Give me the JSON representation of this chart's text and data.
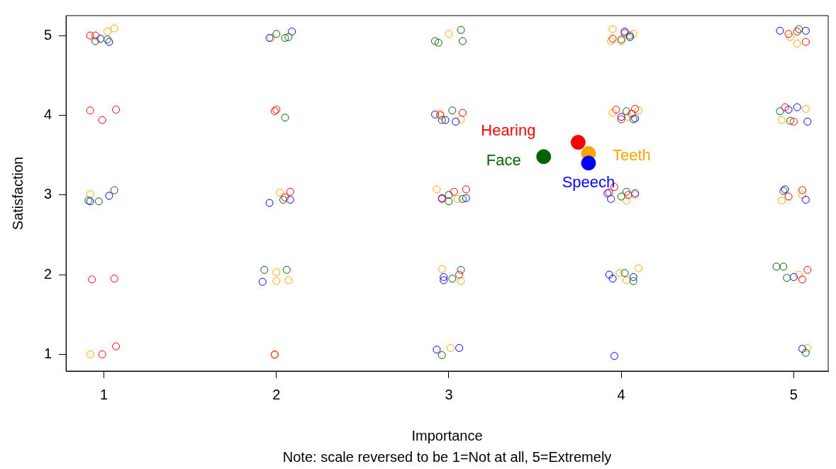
{
  "chart_data": {
    "type": "scatter",
    "xlabel": "Importance",
    "ylabel": "Satisfaction",
    "annotations": [
      "Note: scale reversed to be 1=Not at all, 5=Extremely"
    ],
    "xlim": [
      0.78,
      5.2
    ],
    "ylim": [
      0.79,
      5.25
    ],
    "xticks": [
      1,
      2,
      3,
      4,
      5
    ],
    "yticks": [
      1,
      2,
      3,
      4,
      5
    ],
    "grid": false,
    "legend": false,
    "marker": "circle",
    "series": [
      {
        "color": "#ff0000",
        "x": [
          0.92,
          0.95,
          0.92,
          0.99,
          1.07,
          0.93,
          1.06,
          0.99,
          1.07,
          2.0,
          1.99,
          2.08,
          2.05,
          3.08,
          2.95,
          3.1,
          2.96,
          3.03,
          3.06,
          3.97,
          4.06,
          4.08,
          4.0,
          3.96,
          4.04,
          4.02,
          3.95,
          4.97,
          5.07,
          5.02,
          4.95,
          5.0,
          5.05,
          4.97,
          5.08,
          5.05,
          1.99,
          3.93
        ],
        "values": [
          5.0,
          5.0,
          4.06,
          3.94,
          4.07,
          1.94,
          1.95,
          1.0,
          1.1,
          4.07,
          1.0,
          3.04,
          2.97,
          4.03,
          4.0,
          3.07,
          2.95,
          3.04,
          2.0,
          4.07,
          4.02,
          4.08,
          3.95,
          3.1,
          3.0,
          5.03,
          4.96,
          5.02,
          4.92,
          5.05,
          4.1,
          3.92,
          3.06,
          2.98,
          2.06,
          1.94,
          4.05,
          3.03
        ]
      },
      {
        "color": "#006400",
        "x": [
          0.95,
          1.02,
          0.97,
          0.91,
          1.06,
          2.0,
          2.05,
          2.07,
          2.05,
          2.04,
          1.93,
          2.06,
          2.94,
          2.92,
          3.07,
          3.08,
          3.02,
          2.96,
          3.0,
          3.08,
          3.07,
          3.02,
          2.96,
          4.0,
          4.05,
          4.07,
          4.03,
          4.03,
          4.02,
          4.07,
          5.03,
          4.92,
          4.98,
          4.94,
          4.9,
          4.94,
          4.96,
          5.07,
          4.0,
          3.0
        ],
        "values": [
          4.93,
          4.95,
          2.92,
          2.93,
          3.06,
          5.02,
          4.97,
          4.98,
          3.97,
          2.94,
          2.06,
          2.06,
          4.91,
          4.93,
          5.07,
          4.93,
          4.06,
          3.94,
          3.0,
          2.95,
          2.06,
          1.95,
          0.99,
          4.95,
          5.0,
          3.95,
          4.05,
          3.04,
          2.02,
          1.92,
          5.08,
          4.05,
          3.93,
          3.05,
          2.1,
          2.1,
          1.96,
          1.02,
          2.98,
          2.92
        ]
      },
      {
        "color": "#0000ff",
        "x": [
          1.03,
          0.98,
          0.92,
          1.03,
          1.96,
          2.09,
          1.96,
          2.08,
          1.92,
          2.98,
          3.04,
          2.92,
          2.96,
          3.1,
          2.97,
          2.97,
          2.93,
          3.06,
          4.02,
          4.05,
          4.0,
          4.08,
          3.94,
          4.08,
          3.93,
          3.95,
          4.07,
          3.96,
          4.92,
          5.07,
          4.97,
          5.02,
          5.08,
          4.95,
          5.07,
          5.0,
          5.05,
          3.92
        ],
        "values": [
          4.92,
          4.96,
          2.92,
          2.99,
          4.97,
          5.05,
          2.9,
          2.94,
          1.91,
          3.94,
          3.92,
          4.01,
          2.96,
          2.96,
          1.97,
          1.93,
          1.06,
          1.08,
          5.05,
          4.98,
          3.98,
          3.96,
          2.95,
          3.02,
          2.0,
          1.95,
          1.97,
          0.98,
          5.06,
          5.06,
          4.07,
          4.1,
          3.92,
          3.07,
          2.94,
          1.97,
          1.07,
          3.02
        ]
      },
      {
        "color": "#ffa500",
        "x": [
          1.02,
          1.06,
          0.92,
          0.92,
          1.97,
          2.0,
          2.07,
          2.0,
          2.02,
          1.99,
          3.0,
          2.95,
          3.07,
          2.93,
          3.05,
          2.96,
          3.07,
          3.01,
          3.95,
          3.94,
          4.07,
          3.95,
          4.04,
          4.1,
          4.03,
          4.08,
          3.99,
          4.1,
          4.03,
          4.93,
          4.98,
          5.02,
          4.93,
          5.07,
          5.05,
          5.03,
          5.08,
          4.0
        ],
        "values": [
          5.05,
          5.09,
          3.01,
          1.0,
          4.97,
          2.03,
          1.93,
          1.92,
          3.03,
          0.99,
          5.02,
          4.02,
          3.95,
          3.07,
          2.95,
          2.07,
          1.92,
          1.08,
          5.08,
          4.93,
          5.02,
          4.03,
          3.98,
          4.06,
          2.93,
          3.0,
          2.02,
          2.08,
          1.93,
          2.93,
          4.98,
          4.9,
          3.94,
          4.08,
          3.0,
          2.0,
          1.08,
          4.93
        ]
      },
      {
        "name": "Hearing",
        "color": "#ff0000",
        "x": [
          3.75
        ],
        "values": [
          3.66
        ]
      },
      {
        "name": "Face",
        "color": "#006400",
        "x": [
          3.55
        ],
        "values": [
          3.48
        ]
      },
      {
        "name": "Speech",
        "color": "#0000ff",
        "x": [
          3.81
        ],
        "values": [
          3.4
        ]
      },
      {
        "name": "Teeth",
        "color": "#ffa500",
        "x": [
          3.81
        ],
        "values": [
          3.52
        ]
      }
    ]
  }
}
